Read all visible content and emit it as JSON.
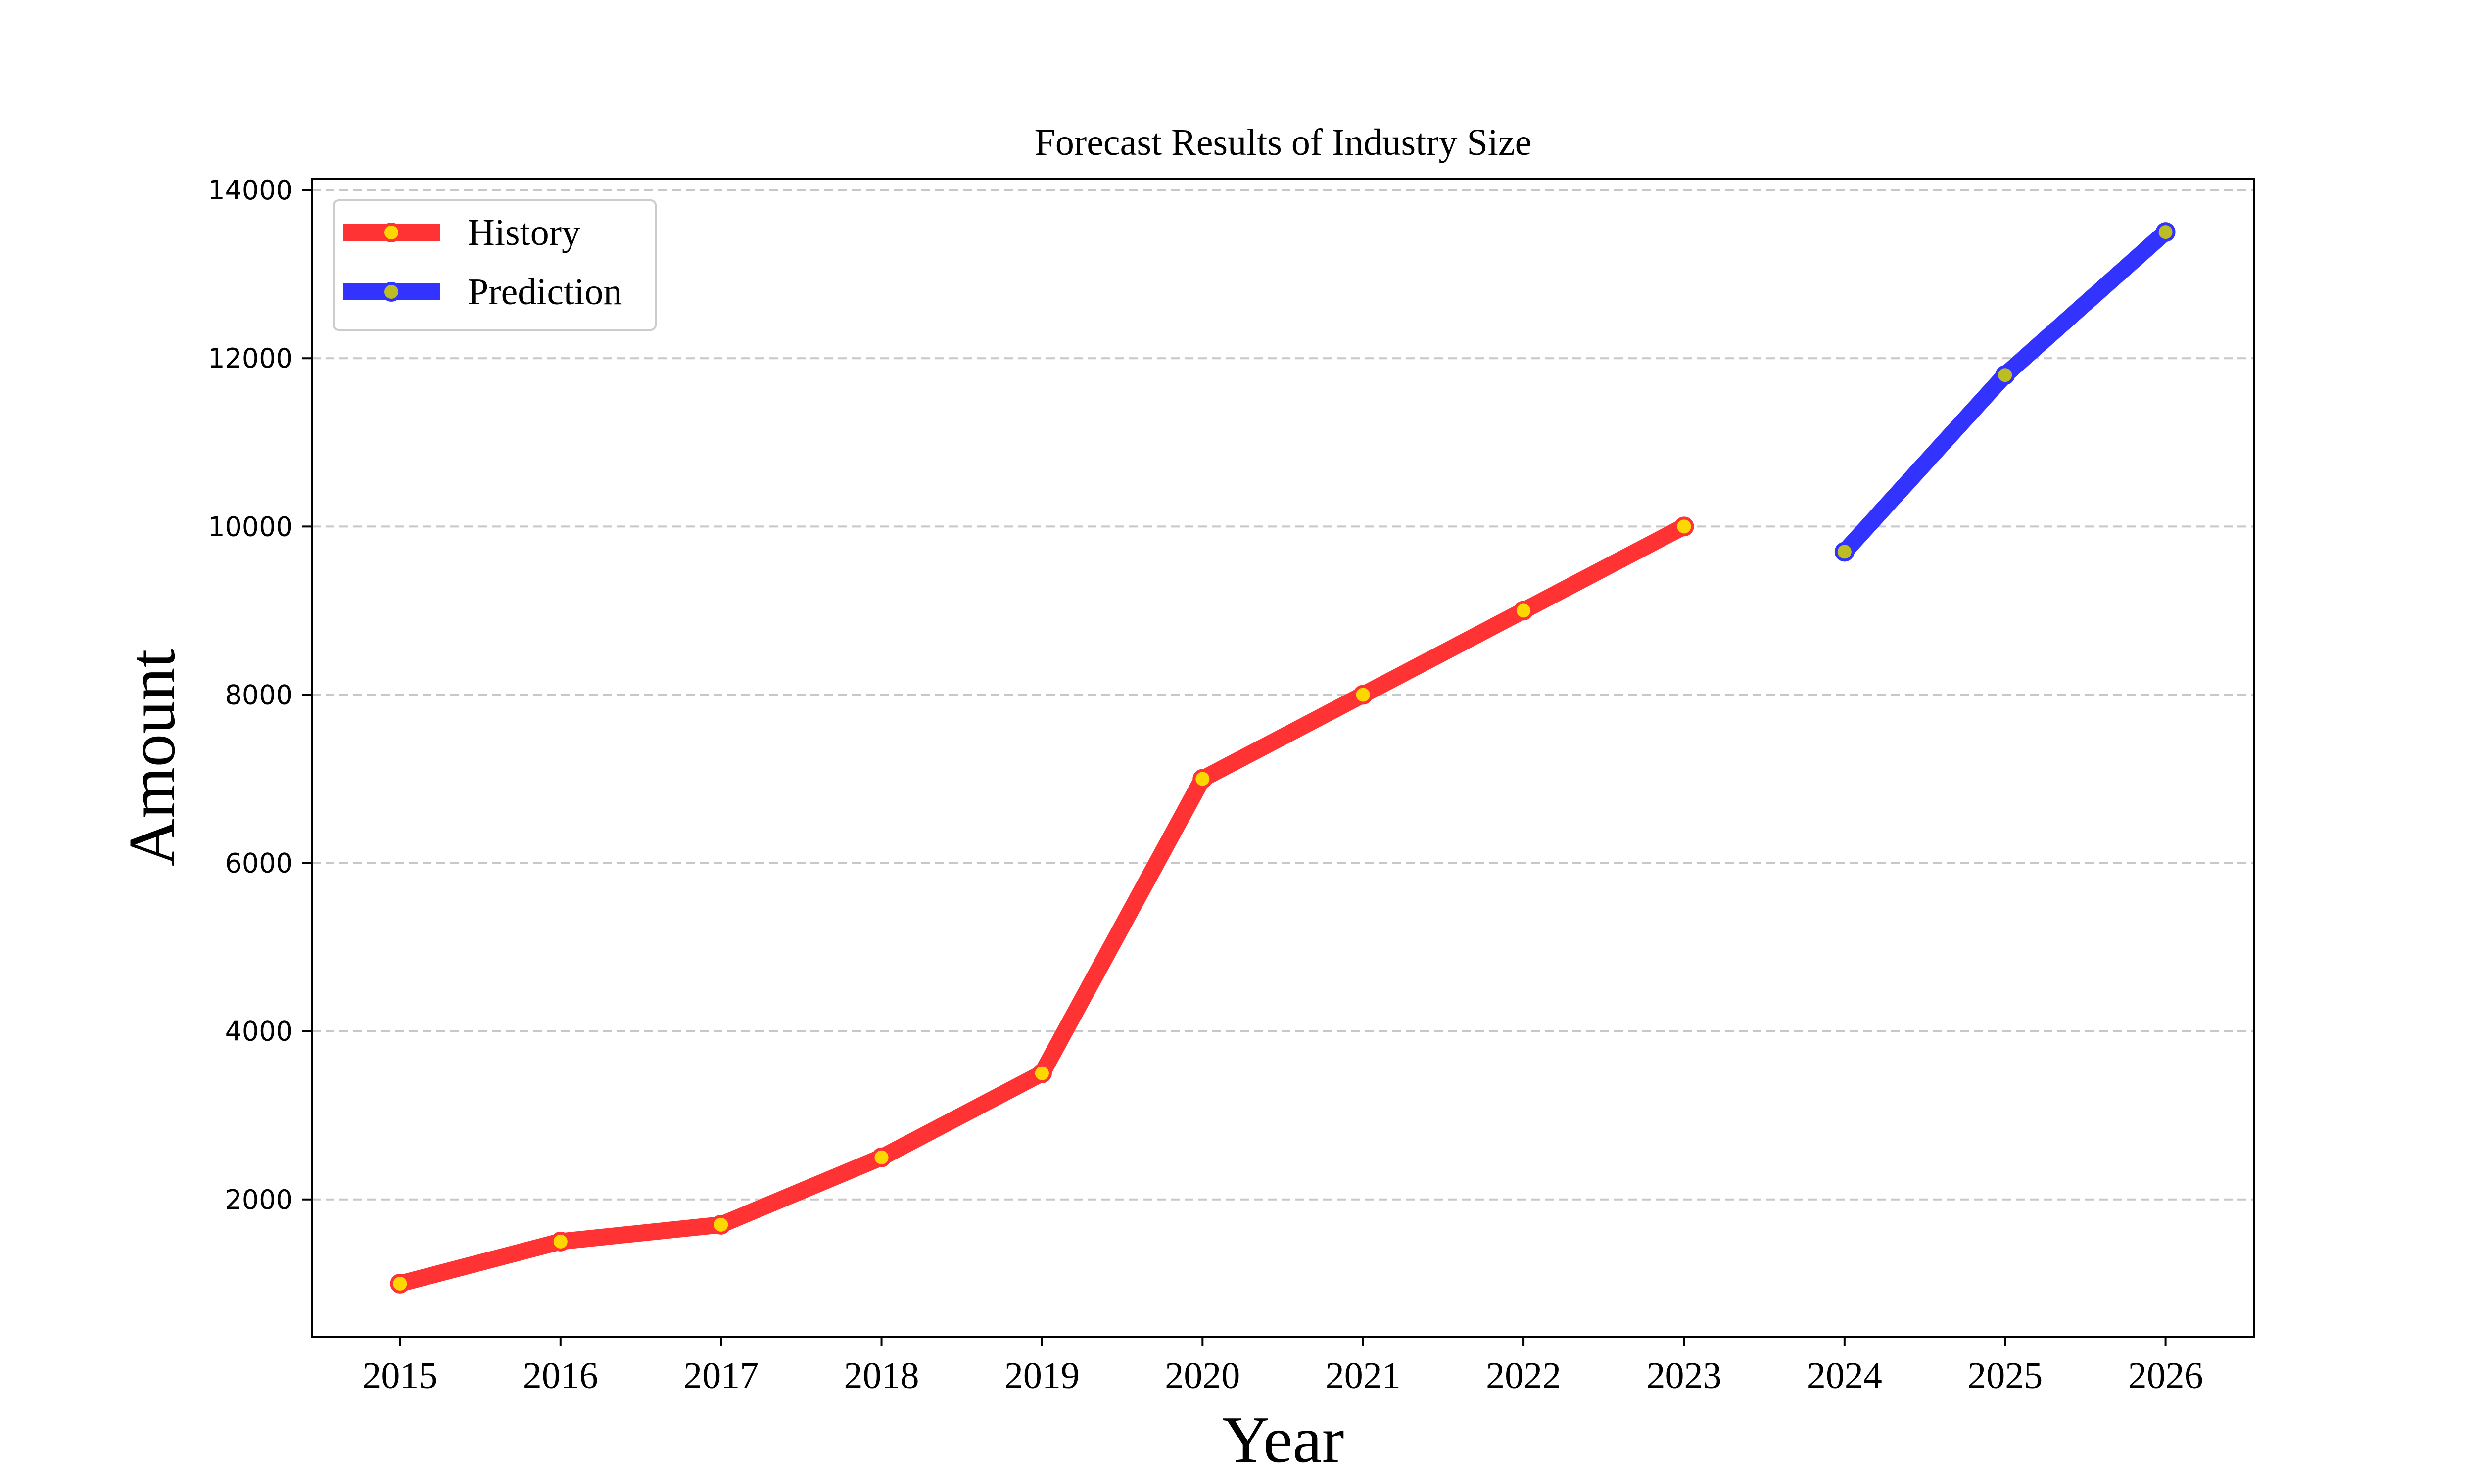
{
  "chart_data": {
    "type": "line",
    "title": "Forecast Results of Industry Size",
    "xlabel": "Year",
    "ylabel": "Amount",
    "x_ticks": [
      "2015",
      "2016",
      "2017",
      "2018",
      "2019",
      "2020",
      "2021",
      "2022",
      "2023",
      "2024",
      "2025",
      "2026"
    ],
    "y_ticks": [
      "2000",
      "4000",
      "6000",
      "8000",
      "10000",
      "12000",
      "14000"
    ],
    "xlim": [
      2014.45,
      2026.55
    ],
    "ylim": [
      370,
      14130
    ],
    "grid": "horizontal dashed",
    "legend_position": "top-left",
    "series": [
      {
        "name": "History",
        "color": "#ff3333",
        "marker_fill": "#ffd700",
        "marker_edge": "#ff3333",
        "points": [
          {
            "x": 2015,
            "y": 1000
          },
          {
            "x": 2016,
            "y": 1500
          },
          {
            "x": 2017,
            "y": 1700
          },
          {
            "x": 2018,
            "y": 2500
          },
          {
            "x": 2019,
            "y": 3500
          },
          {
            "x": 2020,
            "y": 7000
          },
          {
            "x": 2021,
            "y": 8000
          },
          {
            "x": 2022,
            "y": 9000
          },
          {
            "x": 2023,
            "y": 10000
          }
        ]
      },
      {
        "name": "Prediction",
        "color": "#3333ff",
        "marker_fill": "#bcbd22",
        "marker_edge": "#3333ff",
        "points": [
          {
            "x": 2024,
            "y": 9700
          },
          {
            "x": 2025,
            "y": 11800
          },
          {
            "x": 2026,
            "y": 13500
          }
        ]
      }
    ]
  }
}
